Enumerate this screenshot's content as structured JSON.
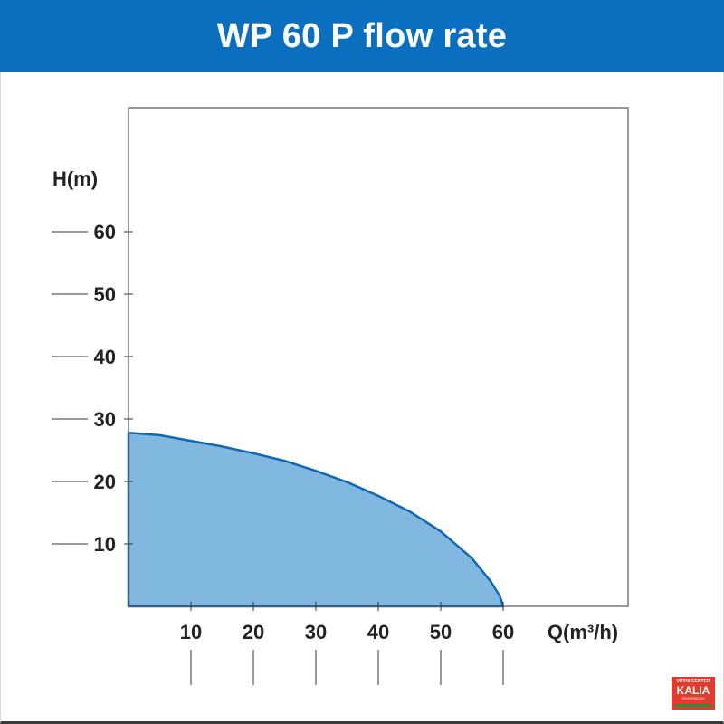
{
  "header": {
    "title": "WP 60 P flow rate"
  },
  "logo": {
    "line1": "VRTNI CENTER",
    "line2": "KALIA",
    "line3": "SEVERNIKOVO"
  },
  "colors": {
    "header_bg": "#0a6fbf",
    "fill": "#80b8df",
    "stroke": "#1267b2",
    "axis": "#333333"
  },
  "chart_data": {
    "type": "area",
    "title": "WP 60 P flow rate",
    "xlabel": "Q(m³/h)",
    "ylabel": "H(m)",
    "xlim": [
      0,
      80
    ],
    "ylim": [
      0,
      80
    ],
    "x_ticks": [
      10,
      20,
      30,
      40,
      50,
      60
    ],
    "y_ticks": [
      10,
      20,
      30,
      40,
      50,
      60
    ],
    "grid": false,
    "series": [
      {
        "x": [
          0,
          5,
          10,
          15,
          20,
          25,
          30,
          35,
          40,
          45,
          50,
          55,
          58,
          59.5,
          60
        ],
        "y": [
          27.8,
          27.4,
          26.5,
          25.6,
          24.5,
          23.3,
          21.7,
          19.9,
          17.7,
          15.2,
          12.0,
          7.7,
          4.0,
          1.6,
          0
        ]
      }
    ]
  }
}
